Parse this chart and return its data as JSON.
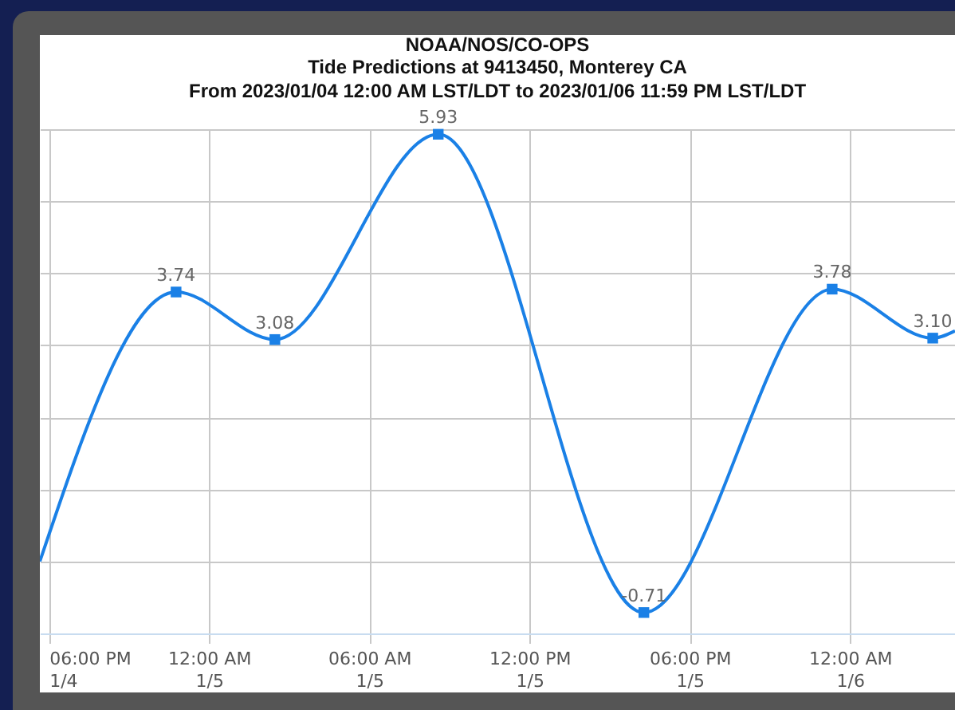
{
  "chart_data": {
    "type": "line",
    "title": "NOAA/NOS/CO-OPS",
    "subtitle": [
      "Tide Predictions at 9413450, Monterey CA",
      "From 2023/01/04 12:00 AM LST/LDT to 2023/01/06 11:59 PM LST/LDT"
    ],
    "x": [
      "2023-01-04T17:40",
      "2023-01-04T22:46",
      "2023-01-05T02:28",
      "2023-01-05T08:35",
      "2023-01-05T16:17",
      "2023-01-05T23:20",
      "2023-01-06T03:06",
      "2023-01-06T03:56"
    ],
    "series": [
      {
        "color": "#1a80e6",
        "values": [
          0.0,
          3.74,
          3.08,
          5.93,
          -0.71,
          3.78,
          3.1,
          3.2
        ],
        "value_labels": [
          null,
          "3.74",
          "3.08",
          "5.93",
          "-0.71",
          "3.78",
          "3.10",
          null
        ]
      }
    ],
    "xlim": [
      "2023-01-04T17:40",
      "2023-01-06T03:56"
    ],
    "xticks": [
      {
        "value": "2023-01-04T18:00",
        "label": "06:00 PM\n1/4"
      },
      {
        "value": "2023-01-05T00:00",
        "label": "12:00 AM\n1/5"
      },
      {
        "value": "2023-01-05T06:00",
        "label": "06:00 AM\n1/5"
      },
      {
        "value": "2023-01-05T12:00",
        "label": "12:00 PM\n1/5"
      },
      {
        "value": "2023-01-05T18:00",
        "label": "06:00 PM\n1/5"
      },
      {
        "value": "2023-01-06T00:00",
        "label": "12:00 AM\n1/6"
      }
    ],
    "ylim": [
      -1,
      6
    ],
    "yticks": [
      {
        "value": -1,
        "label": null
      },
      {
        "value": 0,
        "label": null
      },
      {
        "value": 1,
        "label": null
      },
      {
        "value": 2,
        "label": null
      },
      {
        "value": 3,
        "label": null
      },
      {
        "value": 4,
        "label": null
      },
      {
        "value": 5,
        "label": null
      },
      {
        "value": 6,
        "label": null
      }
    ],
    "tick_labels": "x",
    "grid": true,
    "marker": "square",
    "line_style": "solid"
  }
}
